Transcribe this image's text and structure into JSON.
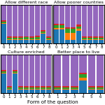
{
  "xlabel": "Form of the question",
  "chart_data": [
    {
      "type": "bar",
      "stacked": true,
      "title": "Allow different race",
      "categories": [
        "0",
        "1",
        "2",
        "3",
        "4",
        "5",
        "6",
        "7",
        "8"
      ],
      "ylim": [
        0,
        1
      ],
      "tick_labels": "x",
      "series": [
        {
          "values": [
            0.5,
            0.08,
            0.08,
            0.08,
            0.08,
            0.08,
            0.08,
            0.25,
            0.08
          ]
        },
        {
          "values": [
            0.02,
            0.02,
            0.02,
            0.02,
            0.02,
            0.02,
            0.03,
            0.02,
            0.02
          ]
        },
        {
          "values": [
            0.04,
            0.04,
            0.04,
            0.04,
            0.05,
            0.04,
            0.05,
            0.04,
            0.04
          ]
        },
        {
          "values": [
            0.03,
            0.03,
            0.03,
            0.03,
            0.03,
            0.03,
            0.03,
            0.03,
            0.03
          ]
        },
        {
          "values": [
            0.41,
            0.83,
            0.83,
            0.83,
            0.82,
            0.83,
            0.81,
            0.66,
            0.83
          ]
        }
      ]
    },
    {
      "type": "bar",
      "stacked": true,
      "title": "Allow poorer countries",
      "categories": [
        "0",
        "1",
        "2",
        "3",
        "4",
        "5",
        "6",
        "7",
        "8"
      ],
      "ylim": [
        0,
        1
      ],
      "tick_labels": "x",
      "series": [
        {
          "values": [
            0.35,
            0.35,
            0.08,
            0.08,
            0.32,
            0.08,
            0.08,
            0.08,
            0.08
          ]
        },
        {
          "values": [
            0.05,
            0.05,
            0.18,
            0.18,
            0.05,
            0.02,
            0.02,
            0.02,
            0.02
          ]
        },
        {
          "values": [
            0.07,
            0.07,
            0.12,
            0.12,
            0.07,
            0.04,
            0.04,
            0.04,
            0.04
          ]
        },
        {
          "values": [
            0.04,
            0.04,
            0.04,
            0.04,
            0.04,
            0.03,
            0.03,
            0.03,
            0.03
          ]
        },
        {
          "values": [
            0.49,
            0.49,
            0.58,
            0.58,
            0.52,
            0.83,
            0.83,
            0.83,
            0.83
          ]
        }
      ]
    },
    {
      "type": "bar",
      "stacked": true,
      "title": "Culture enriched",
      "categories": [
        "0",
        "1",
        "2",
        "3",
        "4",
        "5",
        "6",
        "7",
        "8"
      ],
      "ylim": [
        0,
        1
      ],
      "tick_labels": "x",
      "series": [
        {
          "values": [
            0.5,
            0.08,
            0.5,
            0.08,
            0.08,
            0.08,
            0.08,
            0.08,
            0.08
          ]
        },
        {
          "values": [
            0.02,
            0.02,
            0.02,
            0.02,
            0.02,
            0.02,
            0.02,
            0.02,
            0.02
          ]
        },
        {
          "values": [
            0.04,
            0.04,
            0.04,
            0.04,
            0.04,
            0.04,
            0.04,
            0.04,
            0.04
          ]
        },
        {
          "values": [
            0.03,
            0.03,
            0.03,
            0.03,
            0.03,
            0.03,
            0.03,
            0.03,
            0.03
          ]
        },
        {
          "values": [
            0.41,
            0.83,
            0.41,
            0.83,
            0.83,
            0.83,
            0.83,
            0.83,
            0.83
          ]
        }
      ]
    },
    {
      "type": "bar",
      "stacked": true,
      "title": "Better place to live",
      "categories": [
        "1",
        "2",
        "3",
        "4",
        "5",
        "6"
      ],
      "ylim": [
        0,
        1
      ],
      "tick_labels": "x",
      "series": [
        {
          "values": [
            0.08,
            0.08,
            0.08,
            0.32,
            0.08,
            0.08
          ]
        },
        {
          "values": [
            0.02,
            0.02,
            0.02,
            0.07,
            0.02,
            0.02
          ]
        },
        {
          "values": [
            0.04,
            0.04,
            0.04,
            0.09,
            0.04,
            0.04
          ]
        },
        {
          "values": [
            0.03,
            0.03,
            0.03,
            0.04,
            0.03,
            0.03
          ]
        },
        {
          "values": [
            0.83,
            0.83,
            0.83,
            0.48,
            0.83,
            0.83
          ]
        }
      ]
    }
  ]
}
